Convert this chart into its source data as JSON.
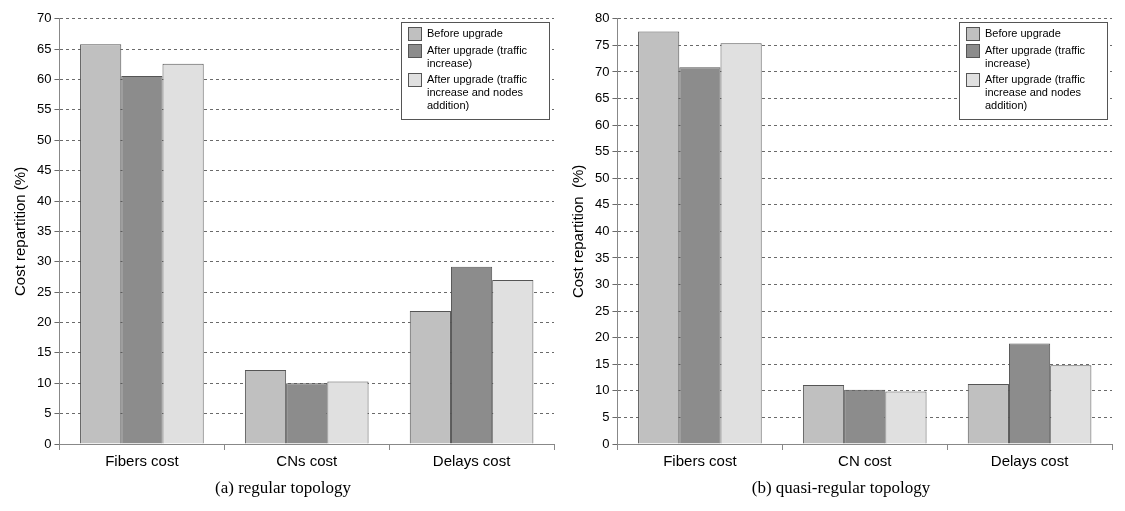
{
  "chart_data": [
    {
      "type": "bar",
      "categories": [
        "Fibers cost",
        "CNs cost",
        "Delays cost"
      ],
      "ylabel": "Cost repartition (%)",
      "ylim": [
        0,
        70
      ],
      "yticks": [
        0,
        5,
        10,
        15,
        20,
        25,
        30,
        35,
        40,
        45,
        50,
        55,
        60,
        65,
        70
      ],
      "grid": "y",
      "legend": "top right",
      "annotations": [
        "(a) regular topology"
      ],
      "series": [
        {
          "name": "Before upgrade",
          "color": "#c0c0c0",
          "values": [
            65.8,
            12.2,
            21.9
          ]
        },
        {
          "name": "After upgrade (traffic increase)",
          "color": "#8c8c8c",
          "values": [
            60.6,
            10.0,
            29.2
          ]
        },
        {
          "name": "After upgrade (traffic increase and nodes addition)",
          "color": "#e0e0e0",
          "values": [
            62.6,
            10.3,
            27.0
          ]
        }
      ]
    },
    {
      "type": "bar",
      "categories": [
        "Fibers cost",
        "CN cost",
        "Delays cost"
      ],
      "ylabel": "Cost repartition  (%)",
      "ylim": [
        0,
        80
      ],
      "yticks": [
        0,
        5,
        10,
        15,
        20,
        25,
        30,
        35,
        40,
        45,
        50,
        55,
        60,
        65,
        70,
        75,
        80
      ],
      "grid": "y",
      "legend": "top right",
      "annotations": [
        "(b) quasi-regular topology"
      ],
      "series": [
        {
          "name": "Before upgrade",
          "color": "#c0c0c0",
          "values": [
            77.6,
            11.1,
            11.3
          ]
        },
        {
          "name": "After upgrade (traffic increase)",
          "color": "#8c8c8c",
          "values": [
            70.9,
            10.2,
            18.9
          ]
        },
        {
          "name": "After upgrade (traffic increase and nodes addition)",
          "color": "#e0e0e0",
          "values": [
            75.4,
            9.9,
            14.8
          ]
        }
      ]
    }
  ]
}
